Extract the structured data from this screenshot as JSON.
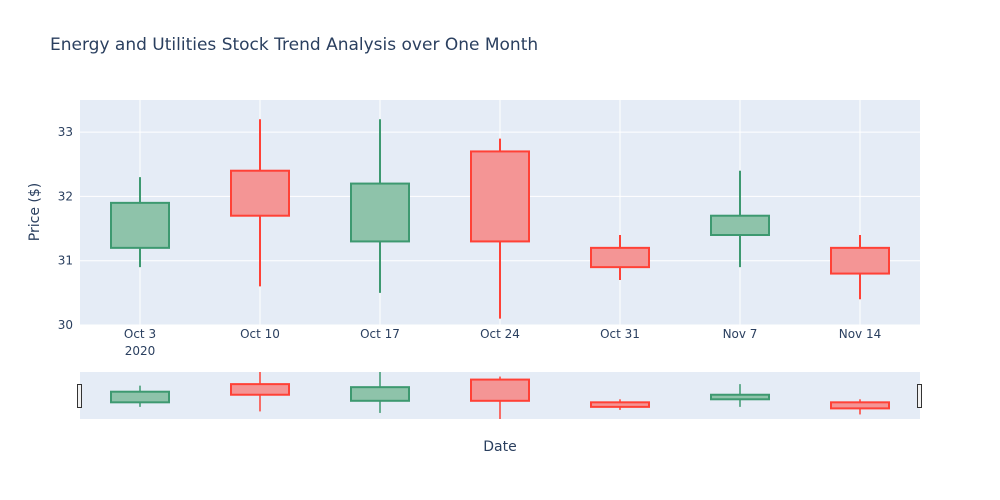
{
  "chart_data": {
    "type": "candlestick",
    "title": "Energy and Utilities Stock Trend Analysis over One Month",
    "xlabel": "Date",
    "ylabel": "Price ($)",
    "ylim": [
      30,
      33.5
    ],
    "yticks": [
      30,
      31,
      32,
      33
    ],
    "year_label": "2020",
    "grid": true,
    "range_slider": true,
    "colors": {
      "increasing_line": "#3d9970",
      "increasing_fill": "#8ec3aa",
      "decreasing_line": "#ff4136",
      "decreasing_fill": "#f49595",
      "plot_bg": "#e5ecf6",
      "grid": "#ffffff"
    },
    "candles": [
      {
        "date": "Oct 3",
        "open": 31.2,
        "high": 32.3,
        "low": 30.9,
        "close": 31.9
      },
      {
        "date": "Oct 10",
        "open": 32.4,
        "high": 33.2,
        "low": 30.6,
        "close": 31.7
      },
      {
        "date": "Oct 17",
        "open": 31.3,
        "high": 33.2,
        "low": 30.5,
        "close": 32.2
      },
      {
        "date": "Oct 24",
        "open": 32.7,
        "high": 32.9,
        "low": 30.1,
        "close": 31.3
      },
      {
        "date": "Oct 31",
        "open": 31.2,
        "high": 31.4,
        "low": 30.7,
        "close": 30.9
      },
      {
        "date": "Nov 7",
        "open": 31.4,
        "high": 32.4,
        "low": 30.9,
        "close": 31.7
      },
      {
        "date": "Nov 14",
        "open": 31.2,
        "high": 31.4,
        "low": 30.4,
        "close": 30.8
      }
    ]
  }
}
